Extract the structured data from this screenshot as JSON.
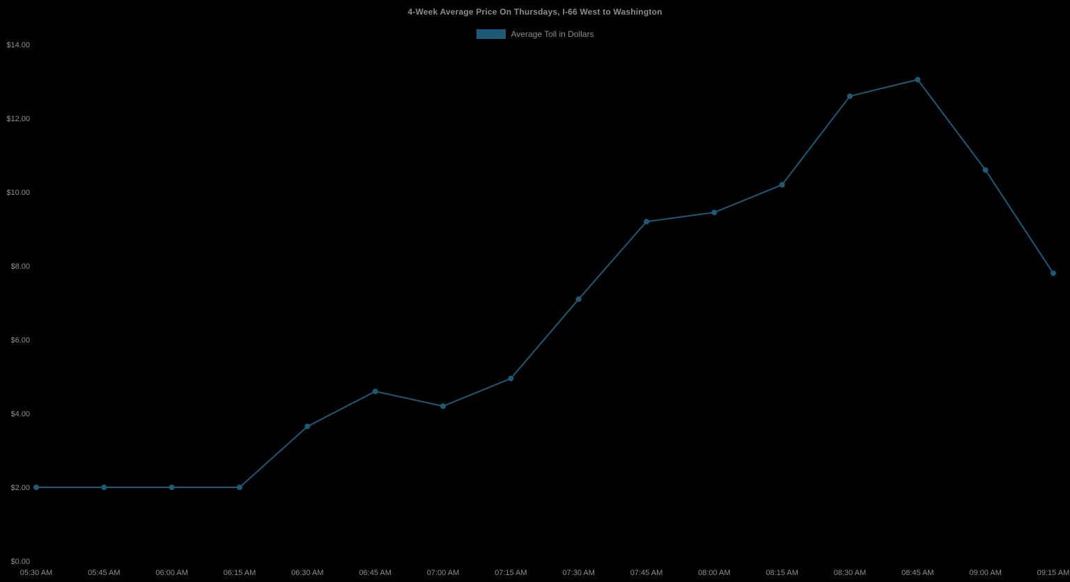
{
  "page": {
    "background": "#000000"
  },
  "header": {
    "title": "4-Week Average Price On Thursdays, I-66 West to Washington"
  },
  "legend": {
    "label": "Average Toll in Dollars",
    "swatch_color": "#1c5a77"
  },
  "colors": {
    "series": "#1c5a77",
    "axis_text": "#909090",
    "title_text": "#8c8c8c",
    "background": "#000000"
  },
  "chart_data": {
    "type": "line",
    "title": "4-Week Average Price On Thursdays, I-66 West to Washington",
    "xlabel": "",
    "ylabel": "",
    "categories": [
      "05:30 AM",
      "05:45 AM",
      "06:00 AM",
      "06:15 AM",
      "06:30 AM",
      "06:45 AM",
      "07:00 AM",
      "07:15 AM",
      "07:30 AM",
      "07:45 AM",
      "08:00 AM",
      "08:15 AM",
      "08:30 AM",
      "08:45 AM",
      "09:00 AM",
      "09:15 AM"
    ],
    "series": [
      {
        "name": "Average Toll in Dollars",
        "color": "#1c5a77",
        "values": [
          2.0,
          2.0,
          2.0,
          2.0,
          3.65,
          4.6,
          4.2,
          4.95,
          7.1,
          9.2,
          9.45,
          10.2,
          12.6,
          13.05,
          10.6,
          7.8
        ]
      }
    ],
    "ylim": [
      0,
      14
    ],
    "ytick_step": 2,
    "ytick_labels": [
      "$0.00",
      "$2.00",
      "$4.00",
      "$6.00",
      "$8.00",
      "$10.00",
      "$12.00",
      "$14.00"
    ],
    "grid": false,
    "axis_lines": false,
    "marker": "circle",
    "marker_radius": 4,
    "line_width": 2,
    "legend_position": "top-center"
  }
}
